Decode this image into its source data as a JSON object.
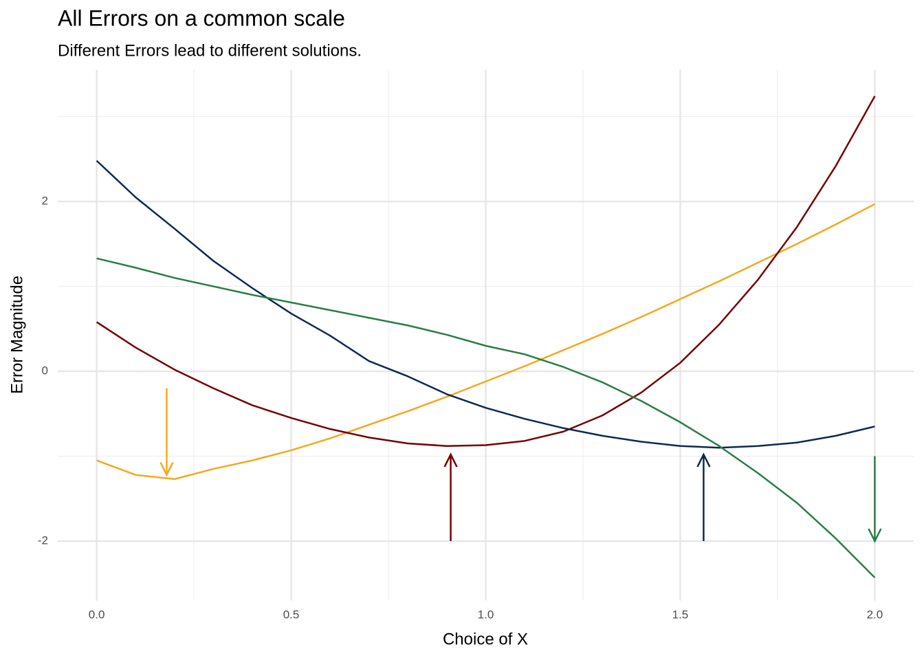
{
  "chart_data": {
    "type": "line",
    "title": "All Errors on a common scale",
    "subtitle": "Different Errors lead to different solutions.",
    "x_label": "Choice of X",
    "y_label": "Error Magnitude",
    "x": [
      0,
      0.1,
      0.2,
      0.3,
      0.4,
      0.5,
      0.6,
      0.7,
      0.8,
      0.9,
      1.0,
      1.1,
      1.2,
      1.3,
      1.4,
      1.5,
      1.6,
      1.7,
      1.8,
      1.9,
      2.0
    ],
    "series": [
      {
        "color": "#f5a81c",
        "values": [
          -1.05,
          -1.22,
          -1.27,
          -1.15,
          -1.05,
          -0.93,
          -0.79,
          -0.63,
          -0.47,
          -0.3,
          -0.12,
          0.06,
          0.25,
          0.44,
          0.64,
          0.85,
          1.06,
          1.28,
          1.5,
          1.73,
          1.97
        ]
      },
      {
        "color": "#760000",
        "values": [
          0.58,
          0.28,
          0.02,
          -0.2,
          -0.4,
          -0.55,
          -0.68,
          -0.78,
          -0.85,
          -0.88,
          -0.87,
          -0.82,
          -0.71,
          -0.52,
          -0.25,
          0.1,
          0.55,
          1.08,
          1.7,
          2.42,
          3.24
        ]
      },
      {
        "color": "#0c2a50",
        "values": [
          2.48,
          2.05,
          1.68,
          1.3,
          0.98,
          0.68,
          0.42,
          0.12,
          -0.06,
          -0.27,
          -0.43,
          -0.56,
          -0.67,
          -0.76,
          -0.83,
          -0.88,
          -0.9,
          -0.88,
          -0.84,
          -0.76,
          -0.65
        ]
      },
      {
        "color": "#2a7d46",
        "values": [
          1.33,
          1.22,
          1.1,
          1.0,
          0.9,
          0.81,
          0.72,
          0.63,
          0.54,
          0.43,
          0.3,
          0.2,
          0.05,
          -0.13,
          -0.35,
          -0.6,
          -0.88,
          -1.2,
          -1.55,
          -1.97,
          -2.43
        ]
      }
    ],
    "arrows": [
      {
        "x": 0.18,
        "y_start": -0.2,
        "y_end": -1.22,
        "color": "#f5a81c"
      },
      {
        "x": 0.91,
        "y_start": -2,
        "y_end": -0.98,
        "color": "#760000"
      },
      {
        "x": 1.56,
        "y_start": -2,
        "y_end": -0.98,
        "color": "#0c2a50"
      },
      {
        "x": 2.0,
        "y_start": -1.0,
        "y_end": -2.0,
        "color": "#2a7d46"
      }
    ],
    "xlim": [
      -0.1,
      2.1
    ],
    "ylim": [
      -2.7,
      3.55
    ],
    "xticks": [
      {
        "value": 0,
        "label": "0.0"
      },
      0.5,
      {
        "value": 1,
        "label": "1.0"
      },
      1.5,
      {
        "value": 2,
        "label": "2.0"
      }
    ],
    "yticks": [
      -2,
      0,
      2
    ],
    "x_minor_ticks": [
      0.25,
      0.75,
      1.25,
      1.75
    ],
    "y_minor_ticks": [
      -1,
      1,
      3
    ],
    "grid": true
  }
}
